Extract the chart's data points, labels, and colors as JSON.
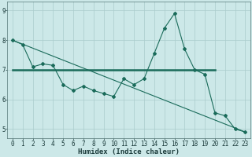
{
  "xlabel": "Humidex (Indice chaleur)",
  "bg_color": "#cce8e8",
  "grid_color": "#aacccc",
  "line_color": "#1a6b5a",
  "xlim": [
    -0.5,
    23.5
  ],
  "ylim": [
    4.7,
    9.3
  ],
  "xticks": [
    0,
    1,
    2,
    3,
    4,
    5,
    6,
    7,
    8,
    9,
    10,
    11,
    12,
    13,
    14,
    15,
    16,
    17,
    18,
    19,
    20,
    21,
    22,
    23
  ],
  "yticks": [
    5,
    6,
    7,
    8,
    9
  ],
  "line1_x": [
    0,
    1,
    2,
    3,
    4,
    5,
    6,
    7,
    8,
    9,
    10,
    11,
    12,
    13,
    14,
    15,
    16,
    17,
    18,
    19,
    20,
    21,
    22,
    23
  ],
  "line1_y": [
    8.0,
    7.85,
    7.1,
    7.2,
    7.15,
    6.5,
    6.3,
    6.45,
    6.3,
    6.2,
    6.1,
    6.7,
    6.5,
    6.7,
    7.55,
    8.4,
    8.9,
    7.7,
    7.0,
    6.85,
    5.55,
    5.45,
    5.0,
    4.9
  ],
  "line2_x": [
    0,
    20
  ],
  "line2_y": [
    7.0,
    7.0
  ],
  "line3_x": [
    0,
    23
  ],
  "line3_y": [
    8.0,
    4.9
  ],
  "font_size_label": 6.5,
  "font_size_tick": 5.5,
  "linewidth": 0.8,
  "thick_linewidth": 1.8,
  "marker_size": 2.0
}
